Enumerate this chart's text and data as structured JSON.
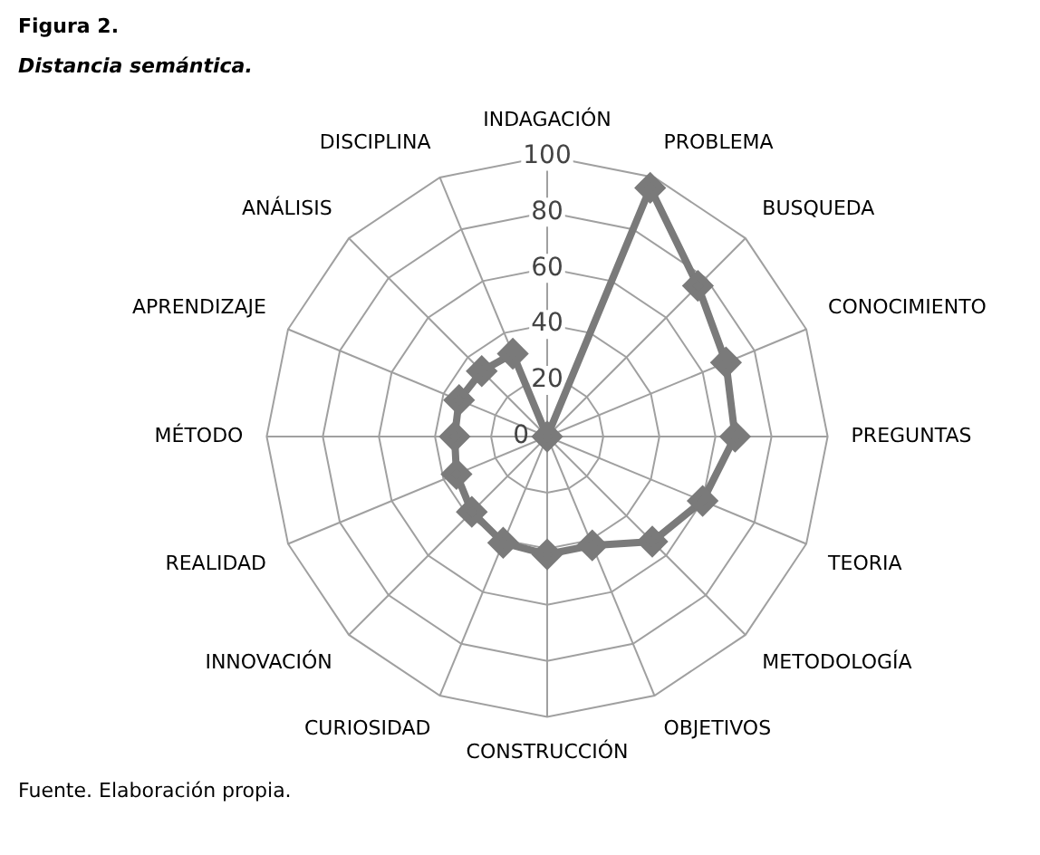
{
  "chart_data": {
    "type": "radar",
    "title": "Figura 2.",
    "subtitle": "Distancia semántica.",
    "categories": [
      "INDAGACIÓN",
      "PROBLEMA",
      "BUSQUEDA",
      "CONOCIMIENTO",
      "PREGUNTAS",
      "TEORIA",
      "METODOLOGÍA",
      "OBJETIVOS",
      "CONSTRUCCIÓN",
      "CURIOSIDAD",
      "INNOVACIÓN",
      "REALIDAD",
      "MÉTODO",
      "APRENDIZAJE",
      "ANÁLISIS",
      "DISCIPLINA"
    ],
    "series": [
      {
        "color": "#7a7a7a",
        "values": [
          0,
          96,
          76,
          69,
          67,
          60,
          53,
          42,
          42,
          41,
          38,
          35,
          33,
          34,
          33,
          32
        ]
      }
    ],
    "ylim": [
      0,
      100
    ],
    "yticks": [
      0,
      20,
      40,
      60,
      80,
      100
    ],
    "grid": true,
    "marker": "diamond",
    "legend": false,
    "annotations": [
      "Fuente. Elaboración propia."
    ]
  }
}
